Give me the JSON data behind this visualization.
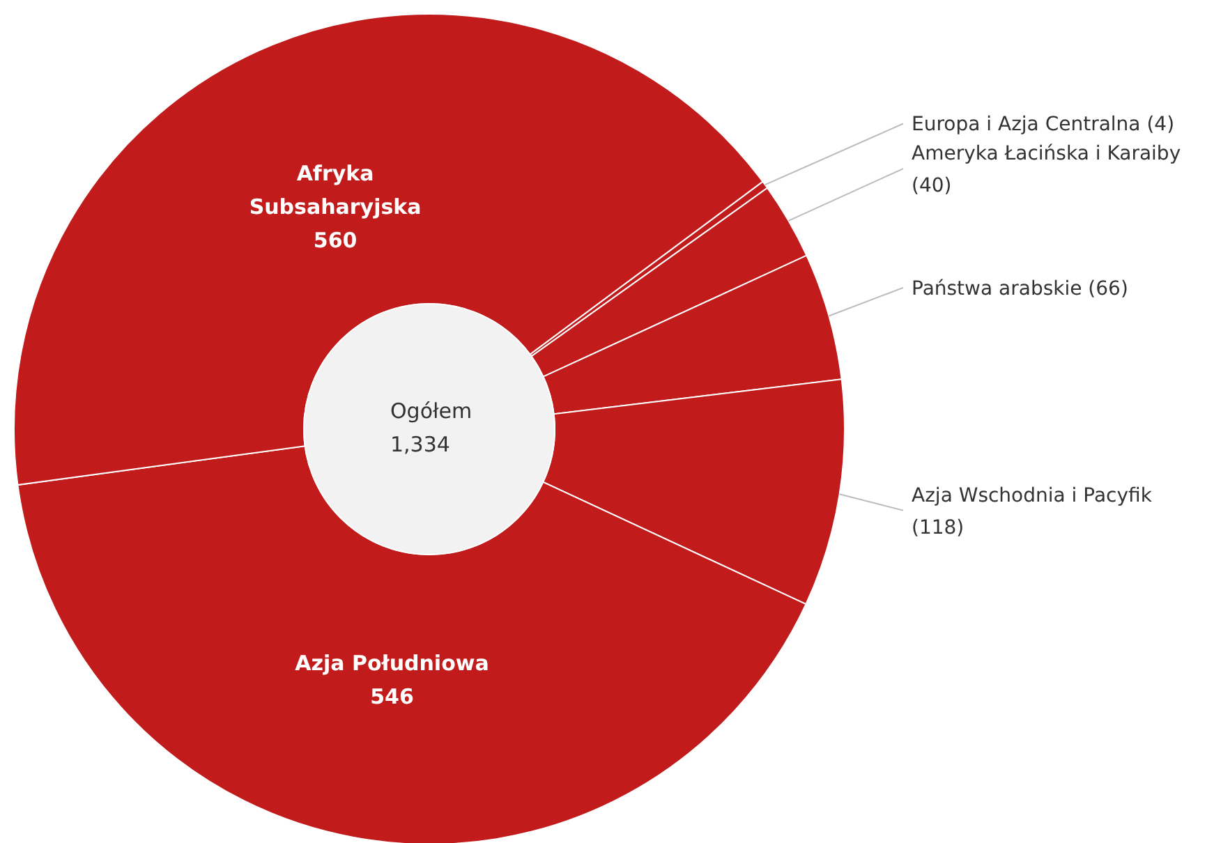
{
  "chart_data": {
    "type": "donut",
    "categories": [
      "Europa i Azja Centralna",
      "Ameryka Łacińska i Karaiby",
      "Państwa arabskie",
      "Azja Wschodnia i Pacyfik",
      "Azja Południowa",
      "Afryka Subsaharyjska"
    ],
    "values": [
      4,
      40,
      66,
      118,
      546,
      560
    ],
    "colors": [
      "#c21b1b",
      "#c21b1b",
      "#c21b1b",
      "#c21b1b",
      "#c21b1b",
      "#c21b1b"
    ],
    "data_labels": true,
    "value_labels": [
      "(4)",
      "(40)",
      "(66)",
      "(118)",
      "546",
      "560"
    ],
    "annotations": [
      "Ogółem",
      "1,334"
    ]
  }
}
